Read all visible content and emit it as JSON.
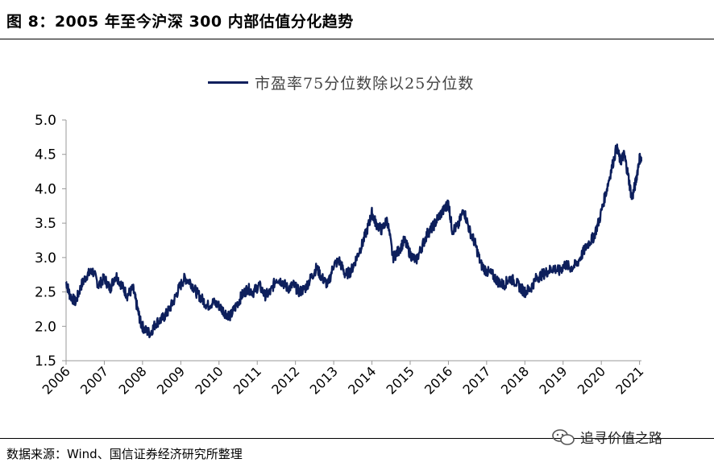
{
  "header": {
    "title": "图 8：2005 年至今沪深 300 内部估值分化趋势"
  },
  "footer": {
    "source": "数据来源：Wind、国信证券经济研究所整理",
    "watermark": "追寻价值之路"
  },
  "colors": {
    "series": "#0d1f5c"
  },
  "icons": {
    "watermark_icon": "wechat-icon"
  },
  "chart_data": {
    "type": "line",
    "title": "",
    "xlabel": "",
    "ylabel": "",
    "ylim": [
      1.5,
      5.0
    ],
    "yticks": [
      "1.5",
      "2.0",
      "2.5",
      "3.0",
      "3.5",
      "4.0",
      "4.5",
      "5.0"
    ],
    "xticks": [
      "2006",
      "2007",
      "2008",
      "2009",
      "2010",
      "2011",
      "2012",
      "2013",
      "2014",
      "2015",
      "2016",
      "2017",
      "2018",
      "2019",
      "2020",
      "2021"
    ],
    "grid": false,
    "legend_position": "top-center",
    "series": [
      {
        "name": "市盈率75分位数除以25分位数",
        "x": [
          2006.0,
          2006.1,
          2006.25,
          2006.4,
          2006.55,
          2006.7,
          2006.85,
          2007.0,
          2007.15,
          2007.3,
          2007.45,
          2007.6,
          2007.75,
          2007.85,
          2007.95,
          2008.05,
          2008.2,
          2008.35,
          2008.5,
          2008.65,
          2008.8,
          2008.95,
          2009.1,
          2009.25,
          2009.4,
          2009.55,
          2009.7,
          2009.85,
          2010.0,
          2010.15,
          2010.3,
          2010.45,
          2010.6,
          2010.75,
          2010.9,
          2011.05,
          2011.2,
          2011.35,
          2011.5,
          2011.65,
          2011.8,
          2011.95,
          2012.1,
          2012.25,
          2012.4,
          2012.55,
          2012.7,
          2012.85,
          2013.0,
          2013.15,
          2013.3,
          2013.45,
          2013.6,
          2013.75,
          2013.9,
          2014.0,
          2014.1,
          2014.25,
          2014.4,
          2014.55,
          2014.7,
          2014.85,
          2015.0,
          2015.15,
          2015.3,
          2015.45,
          2015.6,
          2015.75,
          2015.9,
          2016.0,
          2016.1,
          2016.25,
          2016.4,
          2016.55,
          2016.7,
          2016.85,
          2017.0,
          2017.15,
          2017.3,
          2017.45,
          2017.6,
          2017.75,
          2017.9,
          2018.0,
          2018.15,
          2018.3,
          2018.45,
          2018.6,
          2018.75,
          2018.9,
          2019.05,
          2019.2,
          2019.35,
          2019.5,
          2019.65,
          2019.8,
          2019.95,
          2020.1,
          2020.25,
          2020.4,
          2020.5,
          2020.6,
          2020.7,
          2020.8,
          2020.9,
          2021.0,
          2021.05
        ],
        "values": [
          2.65,
          2.45,
          2.35,
          2.6,
          2.75,
          2.8,
          2.6,
          2.7,
          2.55,
          2.75,
          2.6,
          2.45,
          2.55,
          2.3,
          2.05,
          1.95,
          1.9,
          2.05,
          2.1,
          2.2,
          2.35,
          2.55,
          2.7,
          2.65,
          2.5,
          2.4,
          2.3,
          2.35,
          2.3,
          2.2,
          2.15,
          2.3,
          2.45,
          2.55,
          2.5,
          2.6,
          2.45,
          2.5,
          2.7,
          2.65,
          2.55,
          2.6,
          2.5,
          2.55,
          2.7,
          2.85,
          2.7,
          2.6,
          2.9,
          2.95,
          2.75,
          2.8,
          3.0,
          3.2,
          3.45,
          3.65,
          3.5,
          3.4,
          3.55,
          3.0,
          3.1,
          3.25,
          3.05,
          2.95,
          3.15,
          3.35,
          3.45,
          3.6,
          3.7,
          3.8,
          3.4,
          3.45,
          3.7,
          3.4,
          3.2,
          2.9,
          2.8,
          2.75,
          2.65,
          2.6,
          2.7,
          2.65,
          2.55,
          2.5,
          2.55,
          2.7,
          2.75,
          2.8,
          2.85,
          2.8,
          2.9,
          2.85,
          2.9,
          3.05,
          3.2,
          3.3,
          3.55,
          3.9,
          4.25,
          4.6,
          4.4,
          4.5,
          4.2,
          3.85,
          4.1,
          4.45,
          4.4
        ]
      }
    ]
  }
}
